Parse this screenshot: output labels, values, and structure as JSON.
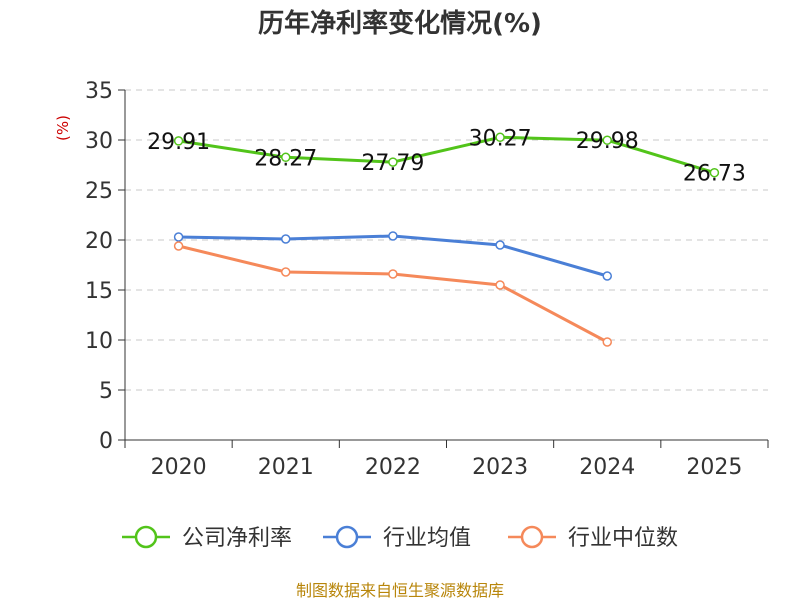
{
  "chart_data": {
    "type": "line",
    "title": "历年净利率变化情况(%)",
    "ylabel": "(%)",
    "xlabel": "",
    "ylim": [
      0,
      35
    ],
    "yticks": [
      0,
      5,
      10,
      15,
      20,
      25,
      30,
      35
    ],
    "categories": [
      "2020",
      "2021",
      "2022",
      "2023",
      "2024",
      "2025"
    ],
    "grid": true,
    "legend_position": "bottom",
    "series": [
      {
        "name": "公司净利率",
        "color": "#52c41a",
        "values": [
          29.91,
          28.27,
          27.79,
          30.27,
          29.98,
          26.73
        ],
        "labels": [
          "29.91",
          "28.27",
          "27.79",
          "30.27",
          "29.98",
          "26.73"
        ]
      },
      {
        "name": "行业均值",
        "color": "#4a7fd6",
        "values": [
          20.3,
          20.1,
          20.4,
          19.5,
          16.4,
          null
        ]
      },
      {
        "name": "行业中位数",
        "color": "#f5895a",
        "values": [
          19.4,
          16.8,
          16.6,
          15.5,
          9.8,
          null
        ]
      }
    ],
    "source": "制图数据来自恒生聚源数据库"
  }
}
